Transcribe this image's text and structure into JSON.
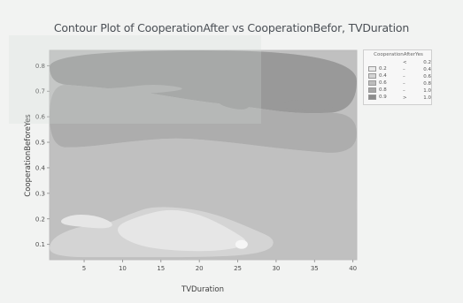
{
  "chart_data": {
    "type": "contour",
    "title": "Contour Plot of CooperationAfter vs CooperationBefor, TVDuration",
    "xlabel": "TVDuration",
    "ylabel": "CooperationBeforeYes",
    "xlim": [
      0.5,
      40.5
    ],
    "ylim": [
      0.04,
      0.86
    ],
    "x_ticks": [
      5,
      10,
      15,
      20,
      25,
      30,
      35,
      40
    ],
    "y_ticks": [
      0.1,
      0.2,
      0.3,
      0.4,
      0.5,
      0.6,
      0.7,
      0.8
    ],
    "grid": false,
    "legend": {
      "title": "CooperationAfterYes",
      "placement": "right",
      "entries": [
        {
          "label": "0.2",
          "color": "#e9e9e9"
        },
        {
          "label": "0.4",
          "color": "#d3d3d3"
        },
        {
          "label": "0.6",
          "color": "#bcbcbc"
        },
        {
          "label": "0.8",
          "color": "#a6a6a6"
        },
        {
          "label": "0.9",
          "color": "#8c8c8c"
        }
      ],
      "right_entries": [
        {
          "sym": "<",
          "label": "0.2"
        },
        {
          "sym": "–",
          "label": "0.4"
        },
        {
          "sym": "–",
          "label": "0.6"
        },
        {
          "sym": "–",
          "label": "0.8"
        },
        {
          "sym": "–",
          "label": "1.0"
        },
        {
          "sym": ">",
          "label": "1.0"
        }
      ]
    },
    "regions": [
      {
        "level": "0.9",
        "color": "#999999",
        "points": [
          [
            0.5,
            0.86
          ],
          [
            40.5,
            0.86
          ],
          [
            40.5,
            0.62
          ],
          [
            33,
            0.61
          ],
          [
            26,
            0.64
          ],
          [
            20,
            0.66
          ],
          [
            12,
            0.7
          ],
          [
            5,
            0.72
          ],
          [
            0.5,
            0.73
          ]
        ]
      },
      {
        "level": "0.8",
        "color": "#adadad",
        "points": [
          [
            0.5,
            0.73
          ],
          [
            5,
            0.72
          ],
          [
            12,
            0.7
          ],
          [
            20,
            0.66
          ],
          [
            26,
            0.64
          ],
          [
            33,
            0.61
          ],
          [
            40.5,
            0.62
          ],
          [
            40.5,
            0.45
          ],
          [
            32,
            0.47
          ],
          [
            24,
            0.5
          ],
          [
            17,
            0.52
          ],
          [
            10,
            0.5
          ],
          [
            5,
            0.48
          ],
          [
            0.5,
            0.48
          ]
        ]
      },
      {
        "level": "0.6",
        "color": "#c0c0c0",
        "points": [
          [
            0.5,
            0.48
          ],
          [
            5,
            0.48
          ],
          [
            10,
            0.5
          ],
          [
            17,
            0.52
          ],
          [
            24,
            0.5
          ],
          [
            32,
            0.47
          ],
          [
            40.5,
            0.45
          ],
          [
            40.5,
            0.04
          ],
          [
            0.5,
            0.04
          ]
        ]
      },
      {
        "level": "0.4",
        "color": "#d4d4d4",
        "points": [
          [
            0.5,
            0.12
          ],
          [
            4,
            0.17
          ],
          [
            8,
            0.18
          ],
          [
            11,
            0.22
          ],
          [
            14,
            0.25
          ],
          [
            19,
            0.24
          ],
          [
            23,
            0.21
          ],
          [
            27,
            0.16
          ],
          [
            30,
            0.12
          ],
          [
            29,
            0.07
          ],
          [
            23,
            0.05
          ],
          [
            10,
            0.05
          ],
          [
            0.5,
            0.05
          ]
        ]
      },
      {
        "level": "0.2",
        "color": "#e6e6e6",
        "points": [
          [
            2,
            0.2
          ],
          [
            4,
            0.22
          ],
          [
            7,
            0.21
          ],
          [
            9,
            0.18
          ],
          [
            8,
            0.16
          ],
          [
            4,
            0.17
          ],
          [
            2,
            0.18
          ]
        ]
      },
      {
        "level": "0.2",
        "color": "#e6e6e6",
        "points": [
          [
            12,
            0.21
          ],
          [
            16,
            0.24
          ],
          [
            20,
            0.22
          ],
          [
            24,
            0.16
          ],
          [
            27,
            0.1
          ],
          [
            22,
            0.07
          ],
          [
            14,
            0.08
          ],
          [
            10,
            0.12
          ],
          [
            9,
            0.17
          ]
        ]
      },
      {
        "level": "0.8",
        "color": "#adadad",
        "points": [
          [
            3,
            0.71
          ],
          [
            9,
            0.71
          ],
          [
            14,
            0.73
          ],
          [
            19,
            0.71
          ],
          [
            14,
            0.69
          ],
          [
            8,
            0.69
          ]
        ]
      },
      {
        "level": "0.9",
        "color": "#999999",
        "points": [
          [
            30,
            0.64
          ],
          [
            34,
            0.62
          ],
          [
            38,
            0.63
          ],
          [
            36,
            0.66
          ],
          [
            32,
            0.67
          ]
        ]
      },
      {
        "level": "0.9",
        "color": "#999999",
        "points": [
          [
            22,
            0.65
          ],
          [
            26,
            0.62
          ],
          [
            27,
            0.66
          ],
          [
            24,
            0.67
          ]
        ]
      }
    ],
    "highlight": {
      "x": 25.5,
      "y": 0.1
    }
  }
}
